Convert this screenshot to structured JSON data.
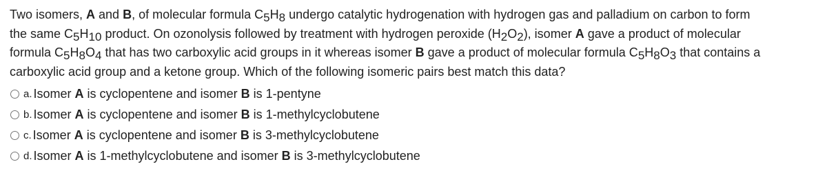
{
  "question": {
    "parts": [
      "Two isomers, ",
      "A",
      " and ",
      "B",
      ", of molecular formula C",
      "5",
      "H",
      "8",
      " undergo catalytic hydrogenation with hydrogen gas and palladium on carbon to form the same C",
      "5",
      "H",
      "10",
      " product. On ozonolysis followed by treatment with hydrogen peroxide (H",
      "2",
      "O",
      "2",
      "), isomer ",
      "A",
      " gave a product of molecular formula C",
      "5",
      "H",
      "8",
      "O",
      "4",
      " that has two carboxylic acid groups in it whereas isomer ",
      "B",
      " gave a product of molecular formula C",
      "5",
      "H",
      "8",
      "O",
      "3",
      " that contains a carboxylic acid group and a ketone group. Which of the following isomeric pairs best match this data?"
    ]
  },
  "options": [
    {
      "letter": "a.",
      "parts": [
        "Isomer ",
        "A",
        " is cyclopentene and isomer ",
        "B",
        " is 1-pentyne"
      ]
    },
    {
      "letter": "b.",
      "parts": [
        "Isomer ",
        "A",
        " is cyclopentene and isomer ",
        "B",
        " is 1-methylcyclobutene"
      ]
    },
    {
      "letter": "c.",
      "parts": [
        "Isomer ",
        "A",
        " is cyclopentene and isomer ",
        "B",
        " is 3-methylcyclobutene"
      ]
    },
    {
      "letter": "d.",
      "parts": [
        "Isomer ",
        "A",
        " is 1-methylcyclobutene and isomer ",
        "B",
        " is 3-methylcyclobutene"
      ]
    }
  ]
}
